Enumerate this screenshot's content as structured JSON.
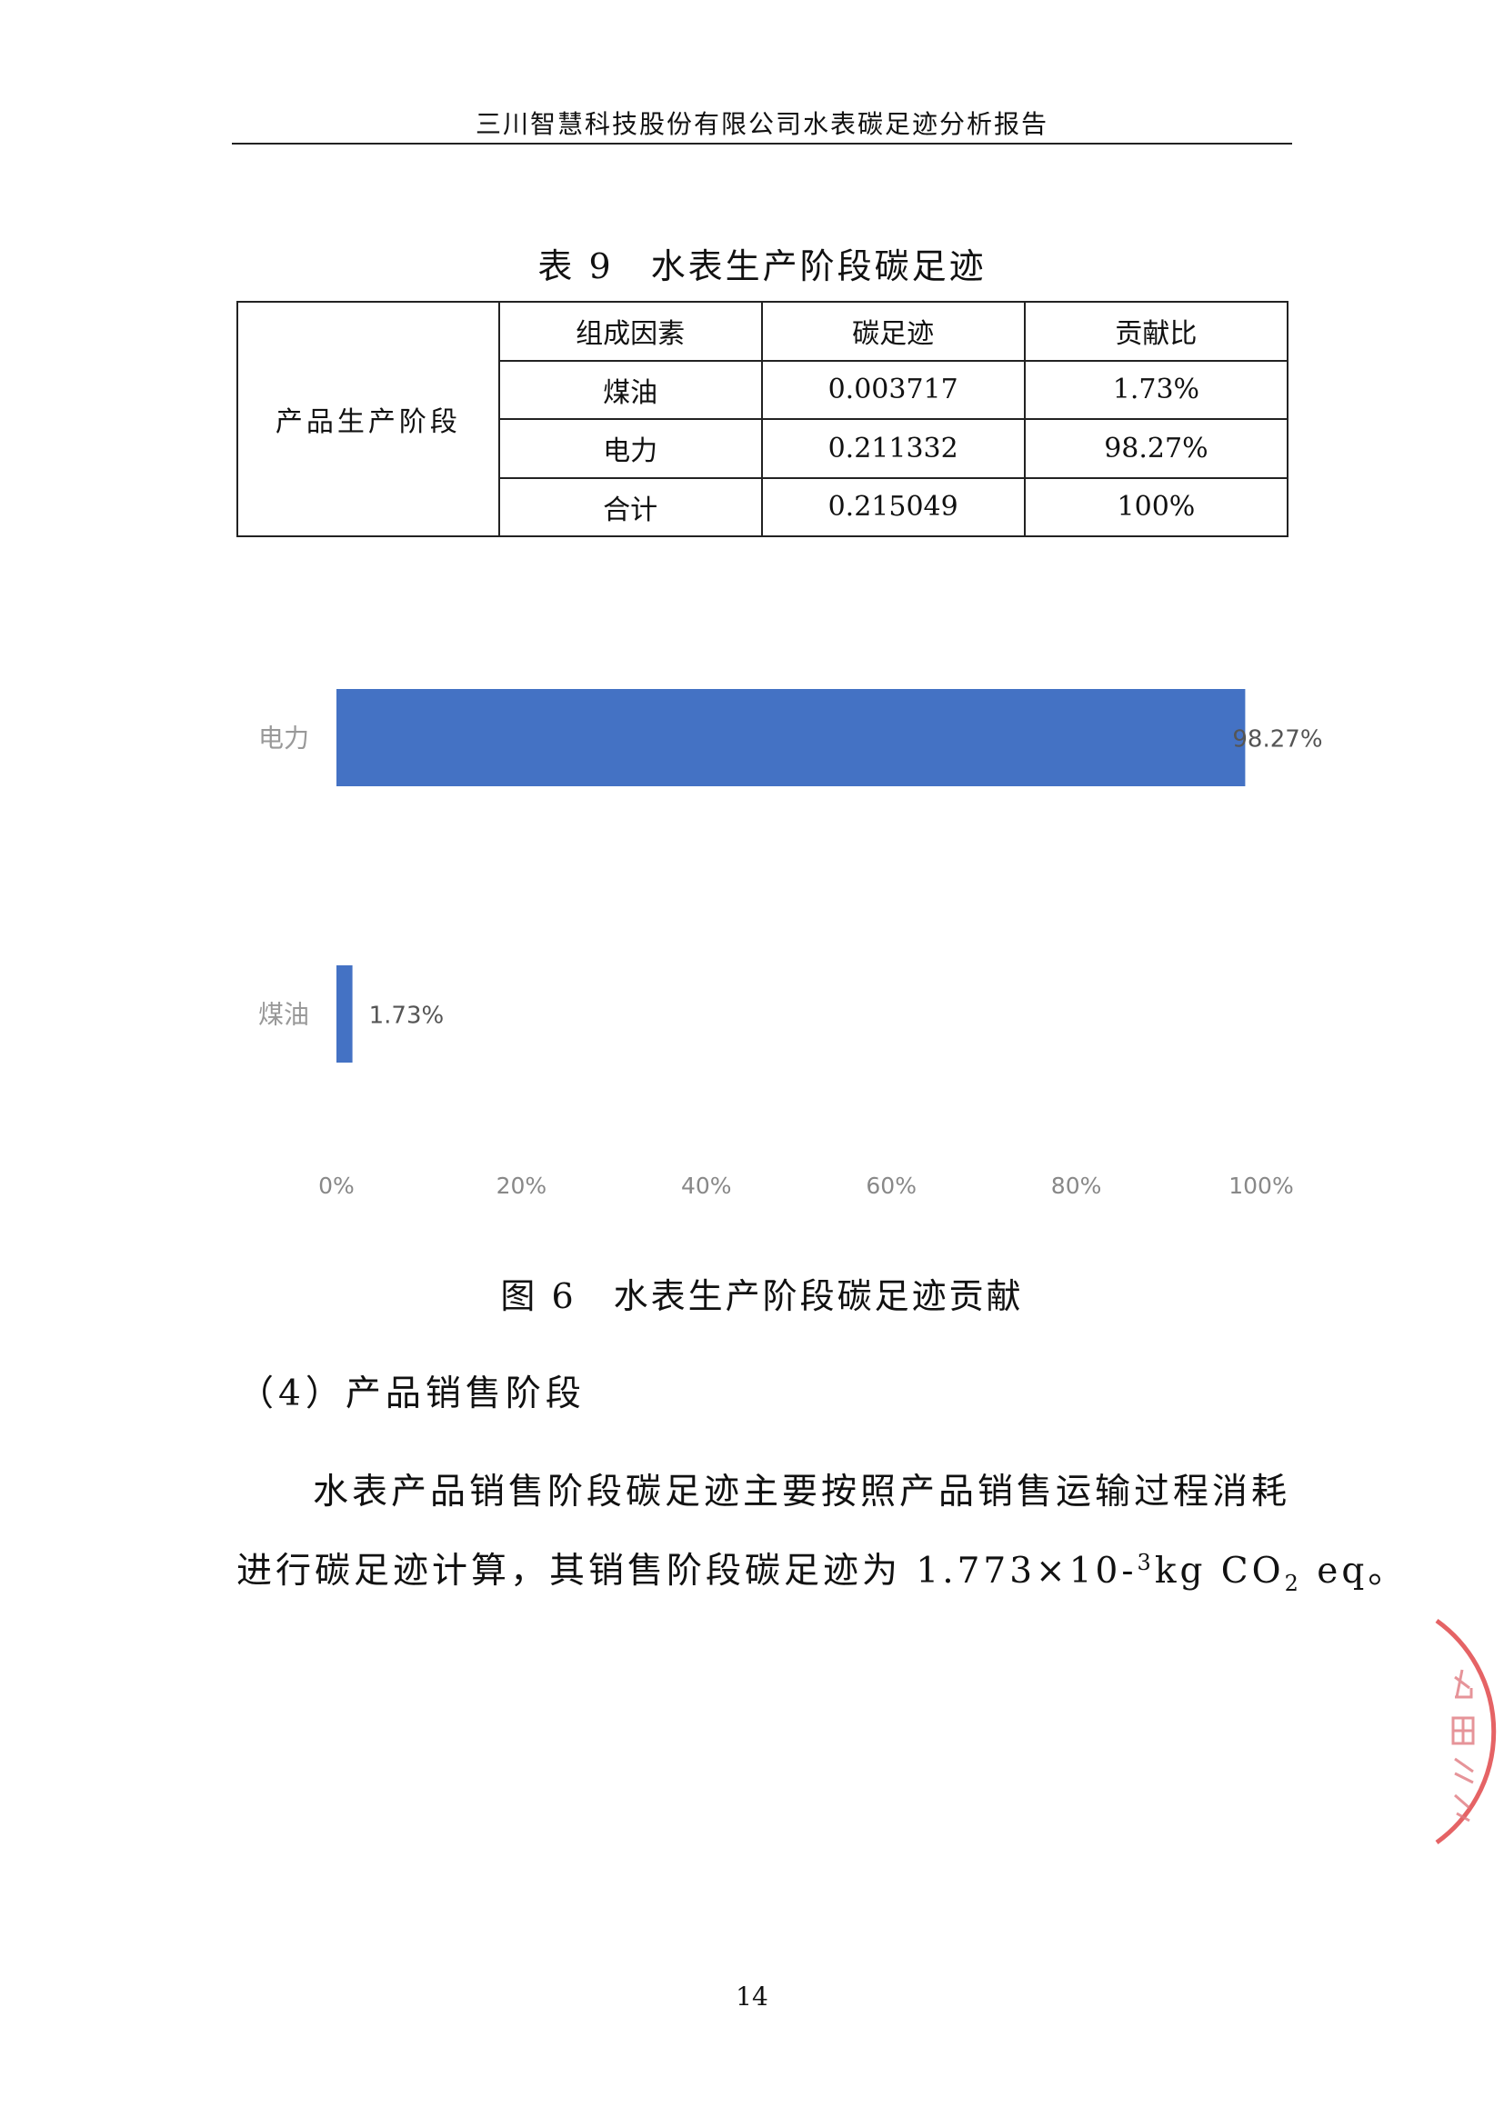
{
  "header": {
    "title": "三川智慧科技股份有限公司水表碳足迹分析报告"
  },
  "table": {
    "caption": "表 9　水表生产阶段碳足迹",
    "stage": "产品生产阶段",
    "columns": [
      "组成因素",
      "碳足迹",
      "贡献比"
    ],
    "rows": [
      [
        "煤油",
        "0.003717",
        "1.73%"
      ],
      [
        "电力",
        "0.211332",
        "98.27%"
      ],
      [
        "合计",
        "0.215049",
        "100%"
      ]
    ]
  },
  "chart_data": {
    "type": "bar",
    "orientation": "horizontal",
    "categories": [
      "电力",
      "煤油"
    ],
    "values": [
      98.27,
      1.73
    ],
    "data_labels": [
      "98.27%",
      "1.73%"
    ],
    "x_ticks": [
      "0%",
      "20%",
      "40%",
      "60%",
      "80%",
      "100%"
    ],
    "xlim": [
      0,
      100
    ],
    "grid": false,
    "bar_color": "#4472c4"
  },
  "figure": {
    "caption": "图 6　水表生产阶段碳足迹贡献"
  },
  "section": {
    "heading": "（4）产品销售阶段"
  },
  "paragraph": {
    "line1": "水表产品销售阶段碳足迹主要按照产品销售运输过程消耗",
    "line2_pre": "进行碳足迹计算，其销售阶段碳足迹为 1.773×10-",
    "line2_sup": "3",
    "line2_mid": "kg CO",
    "line2_sub": "2",
    "line2_post": " eq。"
  },
  "page_number": "14",
  "stamp": {
    "text": "古阳公",
    "color": "#e0484a"
  }
}
